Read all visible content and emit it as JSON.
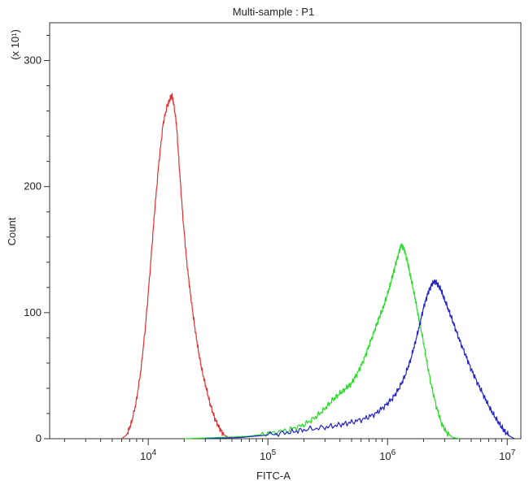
{
  "chart_data": {
    "type": "line",
    "title": "Multi-sample : P1",
    "xlabel": "FITC-A",
    "ylabel": "Count",
    "y_multiplier": "(x 10¹)",
    "x_scale": "log",
    "xlim": [
      1500,
      13000000
    ],
    "ylim": [
      0,
      330
    ],
    "x_ticks": [
      {
        "value": 10000,
        "base": "10",
        "exp": "4"
      },
      {
        "value": 100000,
        "base": "10",
        "exp": "5"
      },
      {
        "value": 1000000,
        "base": "10",
        "exp": "6"
      },
      {
        "value": 10000000,
        "base": "10",
        "exp": "7"
      }
    ],
    "y_ticks": [
      {
        "value": 0,
        "label": "0"
      },
      {
        "value": 100,
        "label": "100"
      },
      {
        "value": 200,
        "label": "200"
      },
      {
        "value": 300,
        "label": "300"
      }
    ],
    "grid": false,
    "series": [
      {
        "color": "#e03030",
        "x": [
          6000,
          6600,
          7200,
          7900,
          8700,
          9500,
          10400,
          11300,
          12300,
          13300,
          14400,
          15300,
          15800,
          16300,
          17200,
          18200,
          19500,
          21000,
          22500,
          24200,
          26000,
          28000,
          30500,
          33000,
          36000,
          39500,
          43000,
          47000,
          50000
        ],
        "y": [
          0,
          3,
          12,
          28,
          55,
          90,
          135,
          180,
          220,
          250,
          264,
          270,
          272,
          266,
          250,
          215,
          175,
          140,
          115,
          92,
          72,
          55,
          40,
          27,
          16,
          8,
          3,
          1,
          0
        ]
      },
      {
        "color": "#22dd22",
        "x": [
          20000,
          40000,
          70000,
          100000,
          150000,
          200000,
          250000,
          300000,
          350000,
          400000,
          450000,
          500000,
          560000,
          630000,
          700000,
          780000,
          850000,
          920000,
          1000000,
          1080000,
          1150000,
          1230000,
          1300000,
          1380000,
          1470000,
          1560000,
          1680000,
          1800000,
          1950000,
          2100000,
          2300000,
          2550000,
          2800000,
          3100000,
          3500000,
          4000000
        ],
        "y": [
          0,
          1,
          2,
          4,
          7,
          11,
          17,
          24,
          31,
          36,
          40,
          44,
          52,
          62,
          74,
          86,
          96,
          104,
          115,
          126,
          136,
          146,
          154,
          150,
          140,
          128,
          114,
          98,
          82,
          64,
          44,
          26,
          13,
          5,
          1,
          0
        ]
      },
      {
        "color": "#2222cc",
        "x": [
          30000,
          60000,
          100000,
          150000,
          200000,
          300000,
          400000,
          500000,
          650000,
          800000,
          950000,
          1100000,
          1250000,
          1400000,
          1550000,
          1700000,
          1850000,
          2000000,
          2150000,
          2300000,
          2450000,
          2600000,
          2800000,
          3000000,
          3300000,
          3600000,
          4000000,
          4500000,
          5000000,
          5600000,
          6300000,
          7000000,
          7800000,
          8700000,
          9500000,
          10500000,
          11500000
        ],
        "y": [
          0,
          1,
          3,
          5,
          7,
          9,
          11,
          13,
          16,
          20,
          26,
          32,
          40,
          50,
          62,
          76,
          90,
          104,
          114,
          121,
          125,
          123,
          118,
          110,
          100,
          90,
          78,
          66,
          55,
          45,
          35,
          26,
          18,
          11,
          6,
          2,
          0
        ]
      }
    ]
  }
}
